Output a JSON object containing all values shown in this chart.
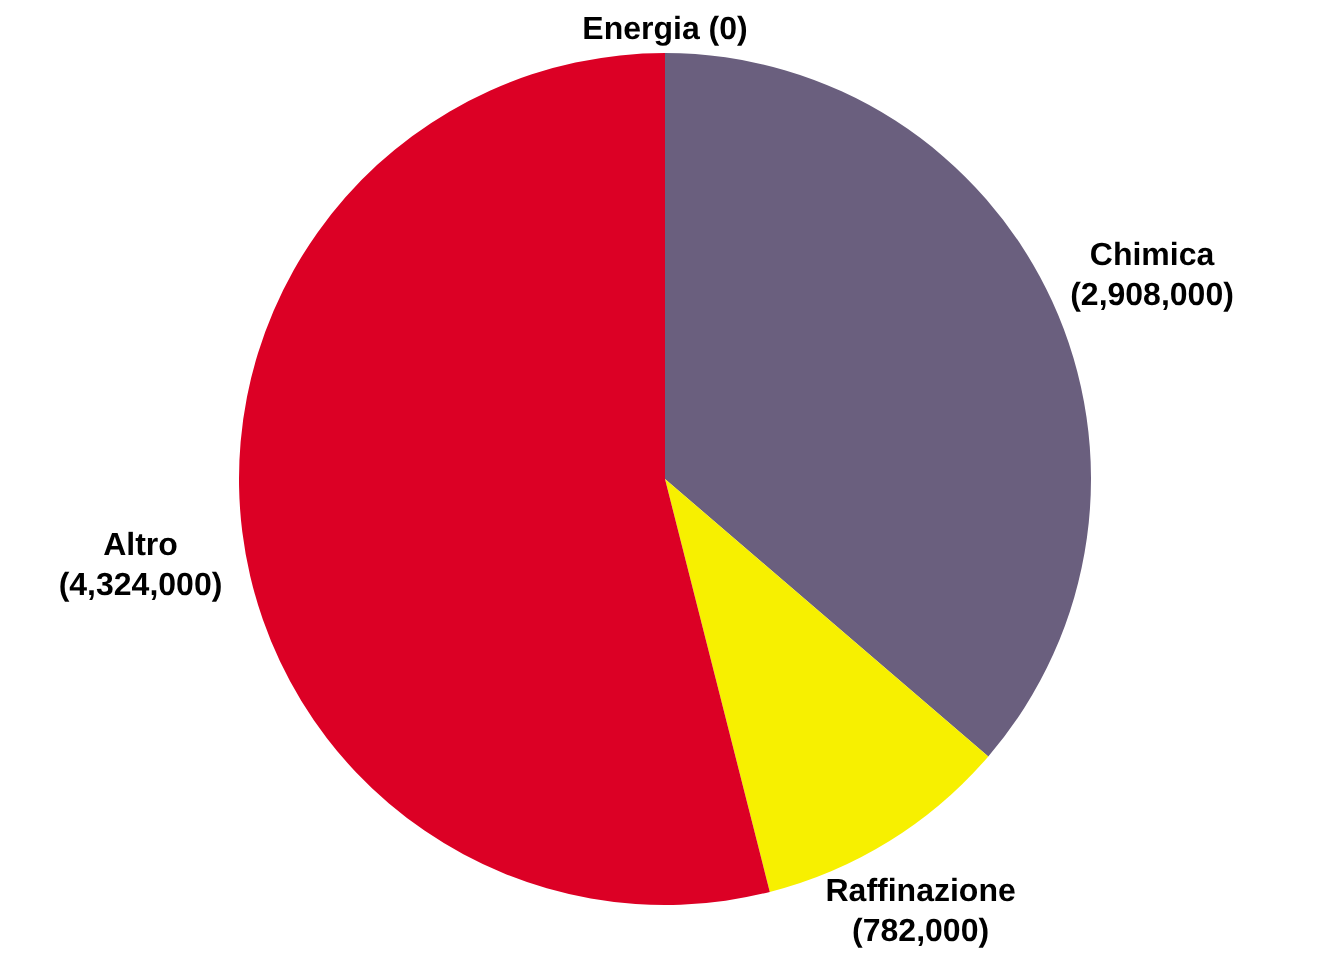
{
  "chart_data": {
    "type": "pie",
    "categories": [
      "Energia",
      "Chimica",
      "Raffinazione",
      "Altro"
    ],
    "values": [
      0,
      2908000,
      782000,
      4324000
    ],
    "colors": [
      "#f08a00",
      "#6a5f7e",
      "#f7f000",
      "#dc0025"
    ],
    "value_labels": [
      "(0)",
      "(2,908,000)",
      "(782,000)",
      "(4,324,000)"
    ]
  }
}
